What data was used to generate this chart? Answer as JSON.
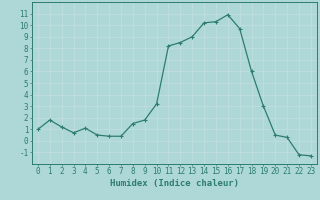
{
  "x": [
    0,
    1,
    2,
    3,
    4,
    5,
    6,
    7,
    8,
    9,
    10,
    11,
    12,
    13,
    14,
    15,
    16,
    17,
    18,
    19,
    20,
    21,
    22,
    23
  ],
  "y": [
    1.0,
    1.8,
    1.2,
    0.7,
    1.1,
    0.5,
    0.4,
    0.4,
    1.5,
    1.8,
    3.2,
    8.2,
    8.5,
    9.0,
    10.2,
    10.3,
    10.9,
    9.7,
    6.0,
    3.0,
    0.5,
    0.3,
    -1.2,
    -1.3
  ],
  "line_color": "#2d7d6e",
  "marker": "+",
  "marker_size": 3,
  "bg_color": "#aed8d8",
  "grid_color": "#c0dede",
  "axis_color": "#2d7d6e",
  "xlabel": "Humidex (Indice chaleur)",
  "xlim": [
    -0.5,
    23.5
  ],
  "ylim": [
    -2,
    12
  ],
  "yticks": [
    -1,
    0,
    1,
    2,
    3,
    4,
    5,
    6,
    7,
    8,
    9,
    10,
    11
  ],
  "xticks": [
    0,
    1,
    2,
    3,
    4,
    5,
    6,
    7,
    8,
    9,
    10,
    11,
    12,
    13,
    14,
    15,
    16,
    17,
    18,
    19,
    20,
    21,
    22,
    23
  ],
  "xlabel_fontsize": 6.5,
  "tick_fontsize": 5.5
}
